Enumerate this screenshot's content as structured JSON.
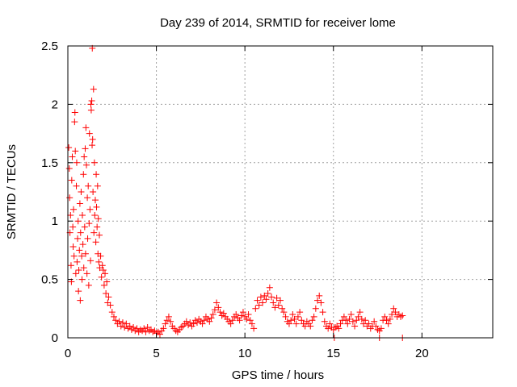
{
  "chart_data": {
    "type": "scatter",
    "title": "Day 239 of 2014, SRMTID for receiver lome",
    "xlabel": "GPS time / hours",
    "ylabel": "SRMTID / TECUs",
    "xlim": [
      0,
      24
    ],
    "ylim": [
      0,
      2.5
    ],
    "xticks": [
      0,
      5,
      10,
      15,
      20
    ],
    "yticks": [
      0,
      0.5,
      1,
      1.5,
      2,
      2.5
    ],
    "x_tick_labels": [
      "0",
      "5",
      "10",
      "15",
      "20"
    ],
    "y_tick_labels": [
      "0",
      "0.5",
      "1",
      "1.5",
      "2",
      "2.5"
    ],
    "grid": true,
    "marker": "+",
    "series": [
      {
        "name": "SRMTID",
        "color": "#ff0000",
        "points": [
          [
            0.05,
            1.63
          ],
          [
            0.08,
            1.45
          ],
          [
            0.1,
            1.2
          ],
          [
            0.12,
            0.9
          ],
          [
            0.15,
            1.05
          ],
          [
            0.18,
            0.62
          ],
          [
            0.2,
            0.48
          ],
          [
            0.22,
            1.35
          ],
          [
            0.25,
            1.55
          ],
          [
            0.28,
            0.95
          ],
          [
            0.3,
            0.78
          ],
          [
            0.32,
            1.1
          ],
          [
            0.35,
            0.7
          ],
          [
            0.38,
            1.85
          ],
          [
            0.4,
            1.93
          ],
          [
            0.42,
            1.6
          ],
          [
            0.45,
            0.55
          ],
          [
            0.48,
            1.3
          ],
          [
            0.5,
            1.5
          ],
          [
            0.52,
            0.65
          ],
          [
            0.55,
            0.85
          ],
          [
            0.58,
            1.0
          ],
          [
            0.6,
            0.4
          ],
          [
            0.62,
            0.58
          ],
          [
            0.65,
            0.75
          ],
          [
            0.68,
            1.15
          ],
          [
            0.7,
            0.32
          ],
          [
            0.72,
            0.9
          ],
          [
            0.75,
            1.25
          ],
          [
            0.78,
            0.7
          ],
          [
            0.8,
            0.5
          ],
          [
            0.82,
            1.05
          ],
          [
            0.85,
            0.8
          ],
          [
            0.88,
            1.4
          ],
          [
            0.9,
            0.6
          ],
          [
            0.92,
            1.55
          ],
          [
            0.95,
            0.95
          ],
          [
            0.98,
            1.62
          ],
          [
            1.0,
            0.72
          ],
          [
            1.02,
            1.8
          ],
          [
            1.05,
            1.48
          ],
          [
            1.08,
            0.55
          ],
          [
            1.1,
            1.2
          ],
          [
            1.12,
            0.85
          ],
          [
            1.15,
            1.3
          ],
          [
            1.18,
            0.45
          ],
          [
            1.2,
            0.98
          ],
          [
            1.22,
            1.75
          ],
          [
            1.25,
            1.1
          ],
          [
            1.28,
            0.66
          ],
          [
            1.3,
            2.0
          ],
          [
            1.32,
            1.95
          ],
          [
            1.35,
            2.03
          ],
          [
            1.37,
            1.65
          ],
          [
            1.38,
            2.48
          ],
          [
            1.4,
            1.7
          ],
          [
            1.42,
            1.25
          ],
          [
            1.45,
            2.13
          ],
          [
            1.47,
            0.9
          ],
          [
            1.5,
            1.5
          ],
          [
            1.52,
            1.05
          ],
          [
            1.55,
            1.18
          ],
          [
            1.58,
            0.82
          ],
          [
            1.6,
            1.4
          ],
          [
            1.62,
            1.12
          ],
          [
            1.65,
            0.95
          ],
          [
            1.68,
            1.3
          ],
          [
            1.7,
            0.72
          ],
          [
            1.72,
            1.02
          ],
          [
            1.75,
            0.65
          ],
          [
            1.78,
            0.88
          ],
          [
            1.8,
            0.6
          ],
          [
            1.85,
            0.7
          ],
          [
            1.9,
            0.52
          ],
          [
            1.95,
            0.62
          ],
          [
            2.0,
            0.58
          ],
          [
            2.05,
            0.45
          ],
          [
            2.1,
            0.55
          ],
          [
            2.15,
            0.38
          ],
          [
            2.2,
            0.48
          ],
          [
            2.25,
            0.3
          ],
          [
            2.3,
            0.35
          ],
          [
            2.4,
            0.28
          ],
          [
            2.5,
            0.22
          ],
          [
            2.6,
            0.18
          ],
          [
            2.7,
            0.15
          ],
          [
            2.8,
            0.12
          ],
          [
            2.9,
            0.14
          ],
          [
            3.0,
            0.1
          ],
          [
            3.1,
            0.13
          ],
          [
            3.2,
            0.09
          ],
          [
            3.3,
            0.12
          ],
          [
            3.4,
            0.08
          ],
          [
            3.5,
            0.1
          ],
          [
            3.6,
            0.07
          ],
          [
            3.7,
            0.09
          ],
          [
            3.8,
            0.06
          ],
          [
            3.9,
            0.08
          ],
          [
            4.0,
            0.05
          ],
          [
            4.1,
            0.07
          ],
          [
            4.2,
            0.06
          ],
          [
            4.3,
            0.08
          ],
          [
            4.4,
            0.05
          ],
          [
            4.5,
            0.09
          ],
          [
            4.6,
            0.06
          ],
          [
            4.7,
            0.07
          ],
          [
            4.8,
            0.05
          ],
          [
            4.9,
            0.06
          ],
          [
            5.0,
            0.04
          ],
          [
            5.1,
            0.05
          ],
          [
            5.2,
            0.03
          ],
          [
            5.3,
            0.06
          ],
          [
            5.4,
            0.08
          ],
          [
            5.5,
            0.12
          ],
          [
            5.6,
            0.15
          ],
          [
            5.7,
            0.18
          ],
          [
            5.8,
            0.14
          ],
          [
            5.9,
            0.1
          ],
          [
            6.0,
            0.08
          ],
          [
            6.1,
            0.06
          ],
          [
            6.2,
            0.05
          ],
          [
            6.3,
            0.07
          ],
          [
            6.4,
            0.09
          ],
          [
            6.5,
            0.1
          ],
          [
            6.6,
            0.12
          ],
          [
            6.7,
            0.14
          ],
          [
            6.8,
            0.11
          ],
          [
            6.9,
            0.13
          ],
          [
            7.0,
            0.1
          ],
          [
            7.1,
            0.12
          ],
          [
            7.2,
            0.15
          ],
          [
            7.3,
            0.13
          ],
          [
            7.4,
            0.16
          ],
          [
            7.5,
            0.14
          ],
          [
            7.6,
            0.12
          ],
          [
            7.7,
            0.15
          ],
          [
            7.8,
            0.18
          ],
          [
            7.9,
            0.16
          ],
          [
            8.0,
            0.14
          ],
          [
            8.1,
            0.17
          ],
          [
            8.2,
            0.2
          ],
          [
            8.3,
            0.24
          ],
          [
            8.4,
            0.3
          ],
          [
            8.5,
            0.26
          ],
          [
            8.6,
            0.22
          ],
          [
            8.7,
            0.19
          ],
          [
            8.8,
            0.21
          ],
          [
            8.9,
            0.18
          ],
          [
            9.0,
            0.16
          ],
          [
            9.1,
            0.14
          ],
          [
            9.2,
            0.12
          ],
          [
            9.3,
            0.15
          ],
          [
            9.4,
            0.18
          ],
          [
            9.5,
            0.2
          ],
          [
            9.6,
            0.17
          ],
          [
            9.7,
            0.15
          ],
          [
            9.8,
            0.19
          ],
          [
            9.9,
            0.22
          ],
          [
            10.0,
            0.18
          ],
          [
            10.1,
            0.16
          ],
          [
            10.2,
            0.2
          ],
          [
            10.3,
            0.15
          ],
          [
            10.4,
            0.12
          ],
          [
            10.5,
            0.08
          ],
          [
            10.6,
            0.25
          ],
          [
            10.7,
            0.32
          ],
          [
            10.8,
            0.28
          ],
          [
            10.9,
            0.35
          ],
          [
            11.0,
            0.3
          ],
          [
            11.1,
            0.36
          ],
          [
            11.2,
            0.33
          ],
          [
            11.3,
            0.38
          ],
          [
            11.4,
            0.43
          ],
          [
            11.5,
            0.35
          ],
          [
            11.6,
            0.3
          ],
          [
            11.7,
            0.26
          ],
          [
            11.8,
            0.34
          ],
          [
            11.9,
            0.28
          ],
          [
            12.0,
            0.32
          ],
          [
            12.1,
            0.25
          ],
          [
            12.2,
            0.22
          ],
          [
            12.3,
            0.18
          ],
          [
            12.4,
            0.14
          ],
          [
            12.5,
            0.12
          ],
          [
            12.6,
            0.15
          ],
          [
            12.7,
            0.2
          ],
          [
            12.8,
            0.16
          ],
          [
            12.9,
            0.12
          ],
          [
            13.0,
            0.18
          ],
          [
            13.1,
            0.22
          ],
          [
            13.2,
            0.15
          ],
          [
            13.3,
            0.12
          ],
          [
            13.4,
            0.1
          ],
          [
            13.5,
            0.14
          ],
          [
            13.6,
            0.12
          ],
          [
            13.7,
            0.1
          ],
          [
            13.8,
            0.15
          ],
          [
            13.9,
            0.18
          ],
          [
            14.0,
            0.25
          ],
          [
            14.1,
            0.32
          ],
          [
            14.2,
            0.36
          ],
          [
            14.3,
            0.3
          ],
          [
            14.4,
            0.22
          ],
          [
            14.5,
            0.14
          ],
          [
            14.6,
            0.1
          ],
          [
            14.7,
            0.08
          ],
          [
            14.8,
            0.12
          ],
          [
            14.9,
            0.09
          ],
          [
            15.0,
            0.07
          ],
          [
            15.1,
            0.09
          ],
          [
            15.2,
            0.1
          ],
          [
            15.3,
            0.08
          ],
          [
            15.4,
            0.12
          ],
          [
            15.5,
            0.15
          ],
          [
            15.6,
            0.18
          ],
          [
            15.7,
            0.15
          ],
          [
            15.8,
            0.12
          ],
          [
            15.9,
            0.16
          ],
          [
            16.0,
            0.2
          ],
          [
            16.1,
            0.14
          ],
          [
            16.2,
            0.1
          ],
          [
            16.3,
            0.15
          ],
          [
            16.4,
            0.18
          ],
          [
            16.5,
            0.22
          ],
          [
            16.6,
            0.16
          ],
          [
            16.7,
            0.12
          ],
          [
            16.8,
            0.15
          ],
          [
            16.9,
            0.1
          ],
          [
            17.0,
            0.12
          ],
          [
            17.1,
            0.08
          ],
          [
            17.2,
            0.1
          ],
          [
            17.3,
            0.14
          ],
          [
            17.4,
            0.1
          ],
          [
            17.5,
            0.07
          ],
          [
            17.6,
            0.06
          ],
          [
            17.7,
            0.08
          ],
          [
            17.8,
            0.15
          ],
          [
            17.9,
            0.18
          ],
          [
            18.0,
            0.15
          ],
          [
            18.1,
            0.12
          ],
          [
            18.2,
            0.16
          ],
          [
            18.3,
            0.2
          ],
          [
            18.4,
            0.25
          ],
          [
            18.5,
            0.22
          ],
          [
            18.6,
            0.18
          ],
          [
            18.7,
            0.2
          ],
          [
            18.8,
            0.18
          ],
          [
            18.9,
            0.19
          ],
          [
            15.05,
            0.0
          ],
          [
            17.6,
            0.0
          ],
          [
            18.9,
            0.0
          ]
        ]
      }
    ]
  }
}
